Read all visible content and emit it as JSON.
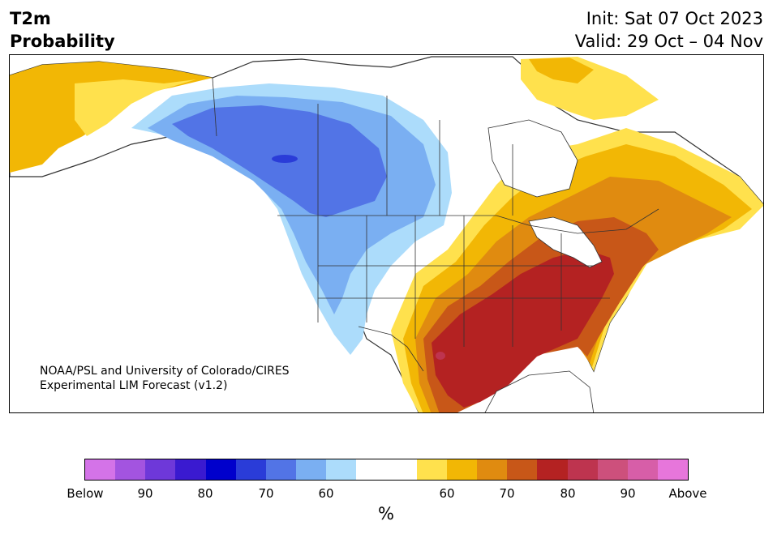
{
  "title": {
    "line1": "T2m",
    "line2": "Probability"
  },
  "meta": {
    "init": "Init: Sat 07 Oct 2023",
    "valid": "Valid: 29 Oct – 04 Nov"
  },
  "credit": {
    "line1": "NOAA/PSL and University of Colorado/CIRES",
    "line2": "Experimental LIM Forecast (v1.2)"
  },
  "colorbar": {
    "colors": [
      "#d473e8",
      "#a354e0",
      "#6e38d9",
      "#3a1ad0",
      "#0000cc",
      "#2a3cd8",
      "#5274e6",
      "#7aaff2",
      "#acdcfb",
      "#ffffff",
      "#ffffff",
      "#ffe14d",
      "#f2b705",
      "#e08b10",
      "#c85718",
      "#b42222",
      "#be344f",
      "#cd507c",
      "#d75ea8",
      "#e776db"
    ],
    "ticks": [
      "Below",
      "90",
      "80",
      "70",
      "60",
      "60",
      "70",
      "80",
      "90",
      "Above"
    ],
    "unit": "%"
  },
  "map_layers": {
    "below_colors": [
      "#acdcfb",
      "#7aaff2",
      "#5274e6",
      "#2a3cd8"
    ],
    "above_colors": [
      "#ffe14d",
      "#f2b705",
      "#e08b10",
      "#c85718",
      "#b42222",
      "#be344f"
    ]
  }
}
